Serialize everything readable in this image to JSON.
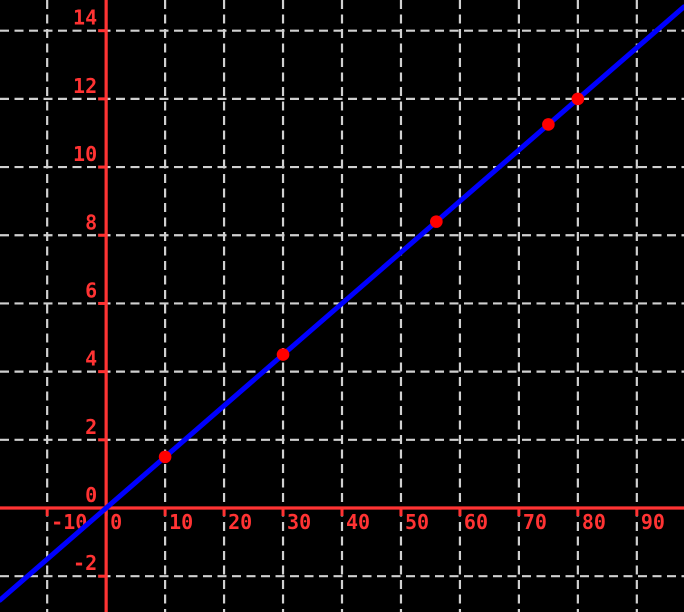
{
  "chart_data": {
    "type": "scatter",
    "title": "",
    "xlabel": "",
    "ylabel": "",
    "background_color": "#000000",
    "axis_color": "#ff3333",
    "grid_color": "#d0d0d0",
    "line_color": "#0000ff",
    "point_color": "#ff0000",
    "grid": true,
    "grid_style": "dashed",
    "legend": false,
    "x_range": [
      -18,
      98
    ],
    "y_range": [
      -3.05,
      14.9
    ],
    "x_ticks": [
      -10,
      0,
      10,
      20,
      30,
      40,
      50,
      60,
      70,
      80,
      90
    ],
    "y_ticks": [
      -2,
      0,
      2,
      4,
      6,
      8,
      10,
      12,
      14
    ],
    "x_tick_labels": [
      "-10",
      "0",
      "10",
      "20",
      "30",
      "40",
      "50",
      "60",
      "70",
      "80",
      "90"
    ],
    "y_tick_labels": [
      "-2",
      "0",
      "2",
      "4",
      "6",
      "8",
      "10",
      "12",
      "14"
    ],
    "points": [
      {
        "x": 10,
        "y": 1.5
      },
      {
        "x": 30,
        "y": 4.5
      },
      {
        "x": 56,
        "y": 8.4
      },
      {
        "x": 75,
        "y": 11.25
      },
      {
        "x": 80,
        "y": 12.0
      }
    ],
    "fit_line": {
      "slope": 0.15,
      "intercept": 0
    }
  }
}
